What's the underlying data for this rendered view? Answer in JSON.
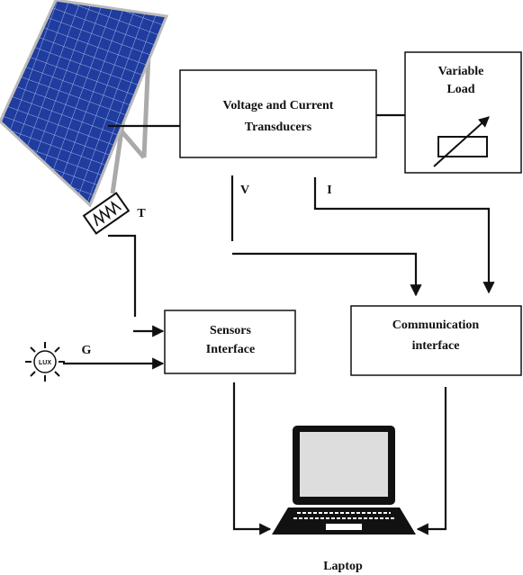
{
  "nodes": [
    {
      "label_lines": [
        "Voltage and Current",
        "Transducers"
      ]
    },
    {
      "label_lines": [
        "Variable",
        "Load"
      ]
    },
    {
      "label_lines": [
        "Sensors",
        "Interface"
      ]
    },
    {
      "label_lines": [
        "Communication",
        "interface"
      ]
    },
    {
      "label_lines": [
        "Laptop"
      ]
    }
  ],
  "signals": {
    "voltage": "V",
    "current": "I",
    "temperature": "T",
    "irradiance": "G"
  },
  "icon_text": "LUX"
}
